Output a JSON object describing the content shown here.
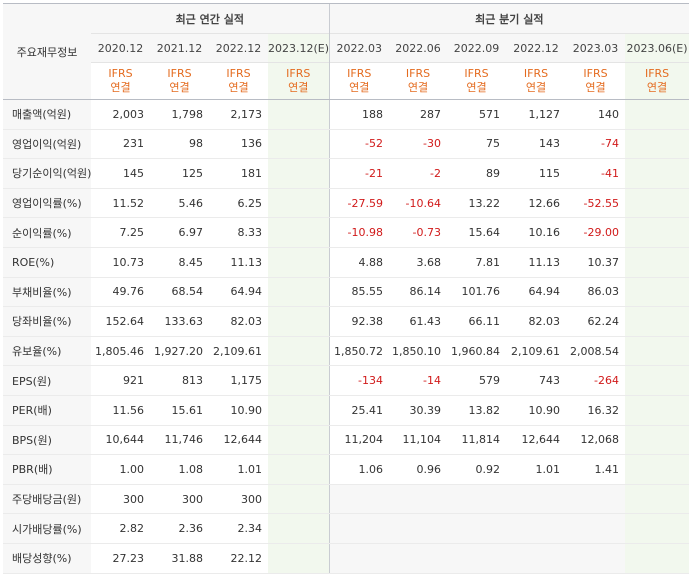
{
  "sidebar_header": "주요재무정보",
  "annual_title": "최근 연간 실적",
  "quarter_title": "최근 분기 실적",
  "periods": [
    "2020.12",
    "2021.12",
    "2022.12",
    "2023.12(E)",
    "2022.03",
    "2022.06",
    "2022.09",
    "2022.12",
    "2023.03",
    "2023.06(E)"
  ],
  "ifrs_line1": "IFRS",
  "ifrs_line2": "연결",
  "rows": [
    {
      "label": "매출액(억원)",
      "v": [
        "2,003",
        "1,798",
        "2,173",
        "",
        "188",
        "287",
        "571",
        "1,127",
        "140",
        ""
      ]
    },
    {
      "label": "영업이익(억원)",
      "v": [
        "231",
        "98",
        "136",
        "",
        "-52",
        "-30",
        "75",
        "143",
        "-74",
        ""
      ]
    },
    {
      "label": "당기순이익(억원)",
      "v": [
        "145",
        "125",
        "181",
        "",
        "-21",
        "-2",
        "89",
        "115",
        "-41",
        ""
      ]
    },
    {
      "label": "영업이익률(%)",
      "v": [
        "11.52",
        "5.46",
        "6.25",
        "",
        "-27.59",
        "-10.64",
        "13.22",
        "12.66",
        "-52.55",
        ""
      ]
    },
    {
      "label": "순이익률(%)",
      "v": [
        "7.25",
        "6.97",
        "8.33",
        "",
        "-10.98",
        "-0.73",
        "15.64",
        "10.16",
        "-29.00",
        ""
      ]
    },
    {
      "label": "ROE(%)",
      "v": [
        "10.73",
        "8.45",
        "11.13",
        "",
        "4.88",
        "3.68",
        "7.81",
        "11.13",
        "10.37",
        ""
      ]
    },
    {
      "label": "부채비율(%)",
      "v": [
        "49.76",
        "68.54",
        "64.94",
        "",
        "85.55",
        "86.14",
        "101.76",
        "64.94",
        "86.03",
        ""
      ]
    },
    {
      "label": "당좌비율(%)",
      "v": [
        "152.64",
        "133.63",
        "82.03",
        "",
        "92.38",
        "61.43",
        "66.11",
        "82.03",
        "62.24",
        ""
      ]
    },
    {
      "label": "유보율(%)",
      "v": [
        "1,805.46",
        "1,927.20",
        "2,109.61",
        "",
        "1,850.72",
        "1,850.10",
        "1,960.84",
        "2,109.61",
        "2,008.54",
        ""
      ]
    },
    {
      "label": "EPS(원)",
      "v": [
        "921",
        "813",
        "1,175",
        "",
        "-134",
        "-14",
        "579",
        "743",
        "-264",
        ""
      ]
    },
    {
      "label": "PER(배)",
      "v": [
        "11.56",
        "15.61",
        "10.90",
        "",
        "25.41",
        "30.39",
        "13.82",
        "10.90",
        "16.32",
        ""
      ]
    },
    {
      "label": "BPS(원)",
      "v": [
        "10,644",
        "11,746",
        "12,644",
        "",
        "11,204",
        "11,104",
        "11,814",
        "12,644",
        "12,068",
        ""
      ]
    },
    {
      "label": "PBR(배)",
      "v": [
        "1.00",
        "1.08",
        "1.01",
        "",
        "1.06",
        "0.96",
        "0.92",
        "1.01",
        "1.41",
        ""
      ]
    },
    {
      "label": "주당배당금(원)",
      "v": [
        "300",
        "300",
        "300",
        "",
        "",
        "",
        "",
        "",
        "",
        ""
      ]
    },
    {
      "label": "시가배당률(%)",
      "v": [
        "2.82",
        "2.36",
        "2.34",
        "",
        "",
        "",
        "",
        "",
        "",
        ""
      ]
    },
    {
      "label": "배당성향(%)",
      "v": [
        "27.23",
        "31.88",
        "22.12",
        "",
        "",
        "",
        "",
        "",
        "",
        ""
      ]
    }
  ],
  "colors": {
    "negative": "#d11a1a",
    "ifrs": "#e46b1f",
    "estimate_bg": "#f2f8ee",
    "header_bg": "#f7f7f7"
  }
}
